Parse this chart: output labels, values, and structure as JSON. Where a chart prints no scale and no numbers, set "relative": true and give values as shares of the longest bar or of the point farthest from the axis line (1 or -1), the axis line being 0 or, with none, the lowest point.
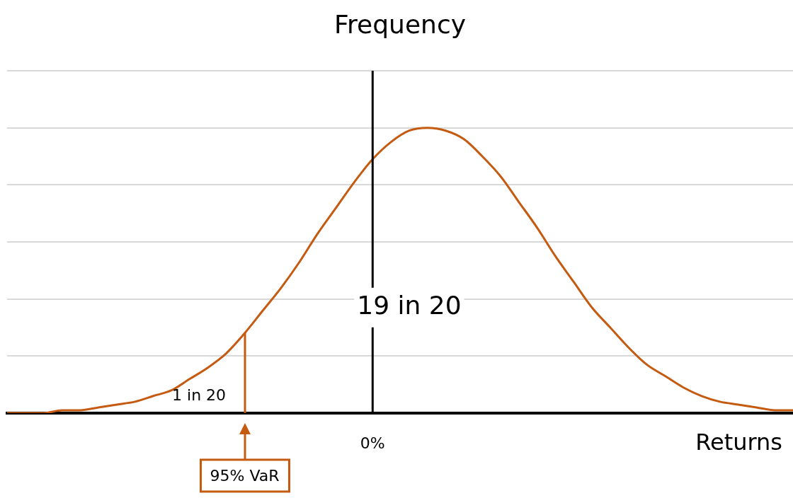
{
  "chart_data": {
    "type": "line",
    "relative": true,
    "ylabel": "Frequency",
    "xlabel": "Returns",
    "categories": [
      null,
      null,
      null,
      null,
      null,
      null,
      null,
      null,
      null,
      null,
      null,
      null,
      null,
      null,
      null,
      null,
      null,
      null,
      null,
      null,
      null,
      null,
      null,
      null,
      null,
      null,
      null,
      null,
      null,
      null,
      null,
      null,
      null,
      null,
      null,
      null,
      null,
      null,
      null,
      null,
      null,
      null,
      null,
      null
    ],
    "values": [
      0.0,
      0.0,
      0.0,
      0.01,
      0.01,
      0.02,
      0.03,
      0.04,
      0.06,
      0.08,
      0.12,
      0.16,
      0.21,
      0.28,
      0.36,
      0.44,
      0.53,
      0.63,
      0.72,
      0.81,
      0.89,
      0.95,
      0.99,
      1.0,
      0.99,
      0.96,
      0.9,
      0.83,
      0.74,
      0.65,
      0.55,
      0.46,
      0.37,
      0.3,
      0.23,
      0.17,
      0.13,
      0.09,
      0.06,
      0.04,
      0.03,
      0.02,
      0.01,
      0.01
    ],
    "color": "#c55a11",
    "marker": "none",
    "line_style": "solid",
    "grid": "y",
    "legend": false,
    "annotations": [
      "19 in 20",
      "1 in 20",
      "95% VaR",
      "0%"
    ]
  }
}
